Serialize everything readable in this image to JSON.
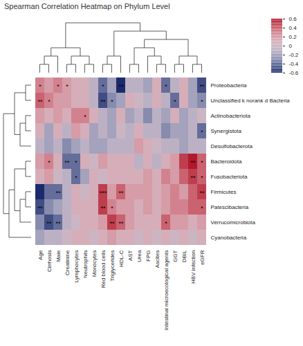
{
  "chart_data": {
    "type": "heatmap",
    "title": "Spearman Correlation Heatmap on Phylum Level",
    "x": [
      "Age",
      "Cirrhosis",
      "Male",
      "Creatinine",
      "Lymphocytes",
      "Neutrophils",
      "Monocytes",
      "Red blood cells",
      "Triglycerides",
      "HDL-C",
      "AST",
      "Urea",
      "FPG",
      "Ascites",
      "Intestinal microecological agents",
      "GGT",
      "DBIL",
      "HBV infection",
      "eGFR"
    ],
    "y": [
      "Proteobacteria",
      "Unclassified k norank d Bacteria",
      "Actinobacteriota",
      "Synergistota",
      "Desulfobacterota",
      "Bacteroidota",
      "Fusobacteriota",
      "Firmicutes",
      "Patescibacteria",
      "Verrucomicrobiota",
      "Cyanobacteria"
    ],
    "values": [
      [
        0.3,
        0.2,
        0.3,
        0.2,
        0.1,
        0.1,
        -0.1,
        -0.4,
        -0.2,
        -0.6,
        -0.1,
        -0.1,
        -0.2,
        0.1,
        -0.4,
        -0.1,
        0.1,
        -0.2,
        -0.5
      ],
      [
        0.4,
        0.3,
        0.2,
        0.2,
        0.1,
        0.1,
        -0.1,
        -0.5,
        -0.3,
        -0.2,
        0.1,
        0,
        -0.1,
        0.1,
        -0.1,
        -0.4,
        0.1,
        -0.2,
        -0.3
      ],
      [
        0.2,
        0.1,
        0.2,
        0.1,
        0.3,
        0.3,
        0.1,
        -0.1,
        -0.2,
        0.1,
        -0.2,
        -0.1,
        -0.3,
        -0.1,
        -0.2,
        0.1,
        -0.2,
        -0.1,
        0
      ],
      [
        0.1,
        -0.2,
        0.1,
        -0.1,
        0.2,
        0.1,
        -0.2,
        -0.1,
        -0.2,
        0,
        -0.1,
        0.1,
        -0.1,
        -0.1,
        -0.3,
        -0.2,
        -0.2,
        -0.1,
        -0.4
      ],
      [
        -0.1,
        -0.2,
        -0.1,
        -0.3,
        -0.2,
        -0.1,
        -0.2,
        -0.2,
        -0.1,
        -0.1,
        -0.1,
        0.2,
        0.1,
        0,
        -0.1,
        -0.1,
        -0.2,
        -0.1,
        -0.1
      ],
      [
        0.2,
        0.3,
        0.1,
        -0.4,
        -0.4,
        0.1,
        0,
        0.2,
        0.1,
        0.1,
        0.1,
        -0.1,
        0.1,
        -0.1,
        0.1,
        0.2,
        0.5,
        0.6,
        0.4
      ],
      [
        0.1,
        0.2,
        0,
        -0.1,
        -0.4,
        -0.2,
        0.1,
        0,
        0.1,
        0.1,
        0.1,
        0.1,
        0.2,
        0.1,
        0.3,
        0.2,
        0.4,
        0.5,
        0.4
      ],
      [
        -0.6,
        -0.4,
        -0.4,
        -0.1,
        0.1,
        0,
        0.1,
        0.5,
        0.2,
        0.4,
        0.2,
        0.2,
        0.2,
        0.1,
        0.2,
        0.3,
        0.2,
        0.4,
        0.5
      ],
      [
        -0.5,
        -0.3,
        -0.2,
        -0.1,
        0.1,
        0.1,
        0.1,
        0.5,
        0.3,
        0.2,
        0.2,
        0.1,
        0.2,
        0.1,
        0.2,
        0.3,
        0.3,
        0.4,
        0.4
      ],
      [
        -0.3,
        -0.5,
        -0.4,
        -0.1,
        0,
        0.1,
        0.1,
        0.2,
        0.5,
        0.4,
        0.2,
        0.1,
        0.1,
        0.1,
        0.4,
        0.2,
        0.2,
        0.1,
        0.2
      ],
      [
        -0.2,
        -0.1,
        -0.1,
        0,
        0.1,
        0.1,
        0,
        0.1,
        0.2,
        0.1,
        0.1,
        0,
        0.1,
        0,
        0.1,
        0,
        0.1,
        0,
        0.1
      ]
    ],
    "significance": [
      [
        "*",
        null,
        "*",
        "*",
        null,
        null,
        null,
        "*",
        null,
        "**",
        null,
        null,
        null,
        null,
        "*",
        null,
        null,
        null,
        "**"
      ],
      [
        "**",
        "*",
        null,
        null,
        null,
        null,
        null,
        "**",
        "*",
        null,
        null,
        null,
        null,
        null,
        null,
        "*",
        null,
        null,
        "*"
      ],
      [
        null,
        null,
        null,
        null,
        null,
        "*",
        null,
        null,
        null,
        null,
        null,
        null,
        null,
        null,
        null,
        null,
        null,
        null,
        null
      ],
      [
        null,
        null,
        null,
        null,
        null,
        null,
        null,
        null,
        null,
        null,
        null,
        null,
        null,
        null,
        null,
        null,
        null,
        null,
        "*"
      ],
      [
        null,
        null,
        null,
        null,
        null,
        null,
        null,
        null,
        null,
        null,
        null,
        null,
        null,
        null,
        null,
        null,
        null,
        null,
        null
      ],
      [
        null,
        "*",
        null,
        "**",
        "*",
        null,
        null,
        null,
        null,
        null,
        null,
        null,
        null,
        null,
        null,
        null,
        null,
        "**",
        "*"
      ],
      [
        null,
        null,
        null,
        null,
        "*",
        null,
        null,
        null,
        null,
        null,
        null,
        null,
        null,
        null,
        null,
        null,
        null,
        "**",
        "*"
      ],
      [
        null,
        null,
        "**",
        null,
        null,
        null,
        null,
        "***",
        null,
        "**",
        null,
        null,
        null,
        null,
        null,
        null,
        null,
        null,
        "**"
      ],
      [
        "**",
        null,
        null,
        null,
        null,
        null,
        null,
        "**",
        "*",
        null,
        null,
        null,
        null,
        null,
        null,
        null,
        null,
        null,
        "*"
      ],
      [
        null,
        "**",
        "**",
        null,
        null,
        null,
        null,
        null,
        "**",
        "**",
        null,
        null,
        null,
        null,
        "*",
        null,
        null,
        null,
        null
      ],
      [
        null,
        null,
        null,
        null,
        null,
        null,
        null,
        null,
        null,
        null,
        null,
        null,
        null,
        null,
        null,
        null,
        null,
        null,
        null
      ]
    ],
    "colorbar": {
      "lim": [
        -0.6,
        0.6
      ],
      "ticks": [
        -0.6,
        -0.4,
        -0.2,
        0,
        0.2,
        0.4,
        0.6
      ]
    },
    "row_dendrogram": [
      [
        [
          "Proteobacteria",
          "Unclassified k norank d Bacteria"
        ],
        [
          [
            "Actinobacteriota",
            "Synergistota"
          ],
          "Desulfobacterota"
        ]
      ],
      [
        [
          [
            "Bacteroidota",
            "Fusobacteriota"
          ],
          [
            [
              "Firmicutes",
              "Patescibacteria"
            ],
            "Verrucomicrobiota"
          ]
        ],
        "Cyanobacteria"
      ]
    ],
    "col_dendrogram": [
      [
        [
          [
            "Age",
            "Cirrhosis"
          ],
          "Male"
        ],
        [
          [
            "Creatinine",
            "Lymphocytes"
          ],
          [
            "Neutrophils",
            "Monocytes"
          ]
        ]
      ],
      [
        [
          [
            "Red blood cells",
            "Triglycerides"
          ],
          "HDL-C"
        ],
        [
          [
            [
              "AST",
              "Urea"
            ],
            [
              "FPG",
              [
                "Ascites",
                "Intestinal microecological agents"
              ]
            ]
          ],
          [
            [
              "GGT",
              "DBIL"
            ],
            [
              "HBV infection",
              "eGFR"
            ]
          ]
        ]
      ]
    ]
  }
}
